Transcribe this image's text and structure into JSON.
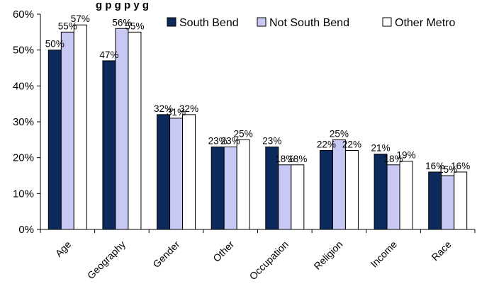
{
  "chart_data": {
    "type": "bar",
    "title": "g       p            g p      y g",
    "categories": [
      "Age",
      "Geography",
      "Gender",
      "Other",
      "Occupation",
      "Religion",
      "Income",
      "Race"
    ],
    "series": [
      {
        "name": "South Bend",
        "color": "#0d2a5c",
        "values": [
          50,
          47,
          32,
          23,
          23,
          22,
          21,
          16
        ]
      },
      {
        "name": "Not South Bend",
        "color": "#c8c8f5",
        "values": [
          55,
          56,
          31,
          23,
          18,
          25,
          18,
          15
        ]
      },
      {
        "name": "Other Metro",
        "color": "#ffffff",
        "values": [
          57,
          55,
          32,
          25,
          18,
          22,
          19,
          16
        ]
      }
    ],
    "data_label_suffix": "%",
    "ylim": [
      0,
      60
    ],
    "yticks": [
      0,
      10,
      20,
      30,
      40,
      50,
      60
    ],
    "ytick_labels": [
      "0%",
      "10%",
      "20%",
      "30%",
      "40%",
      "50%",
      "60%"
    ],
    "xlabel": "",
    "ylabel": "",
    "grid": false,
    "legend_position": "top-right"
  }
}
